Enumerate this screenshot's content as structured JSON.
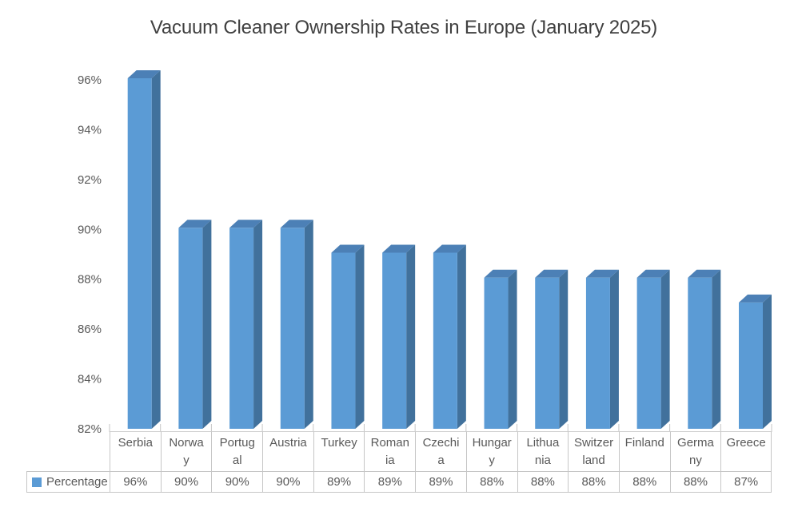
{
  "chart_data": {
    "type": "bar",
    "variant": "3d-column",
    "title": "Vacuum Cleaner Ownership Rates in Europe (January 2025)",
    "categories": [
      "Serbia",
      "Norway",
      "Portugal",
      "Austria",
      "Turkey",
      "Romania",
      "Czechia",
      "Hungary",
      "Lithuania",
      "Switzerland",
      "Finland",
      "Germany",
      "Greece"
    ],
    "category_display": [
      "Serbia",
      "Norwa\ny",
      "Portug\nal",
      "Austria",
      "Turkey",
      "Roman\nia",
      "Czechi\na",
      "Hungar\ny",
      "Lithua\nnia",
      "Switzer\nland",
      "Finland",
      "Germa\nny",
      "Greece"
    ],
    "series": [
      {
        "name": "Percentage",
        "values": [
          96,
          90,
          90,
          90,
          89,
          89,
          89,
          88,
          88,
          88,
          88,
          88,
          87
        ],
        "value_labels": [
          "96%",
          "90%",
          "90%",
          "90%",
          "89%",
          "89%",
          "89%",
          "88%",
          "88%",
          "88%",
          "88%",
          "88%",
          "87%"
        ]
      }
    ],
    "y_axis": {
      "min": 82,
      "max": 96,
      "tick_values": [
        96,
        94,
        92,
        90,
        88,
        86,
        84,
        82
      ],
      "tick_labels": [
        "96%",
        "94%",
        "92%",
        "90%",
        "88%",
        "86%",
        "84%",
        "82%"
      ]
    },
    "legend": {
      "label": "Percentage",
      "position": "data-table-left"
    },
    "layout": {
      "gridlines": false,
      "data_table": true,
      "plot_background": "#ffffff"
    },
    "colors": {
      "bar_front": "#5B9BD5",
      "bar_top": "#4C80B6",
      "bar_side": "#41719C",
      "legend_swatch": "#5B9BD5",
      "title_text": "#404040",
      "axis_text": "#595959",
      "table_text": "#595959",
      "table_border": "#C6C6C6"
    }
  }
}
